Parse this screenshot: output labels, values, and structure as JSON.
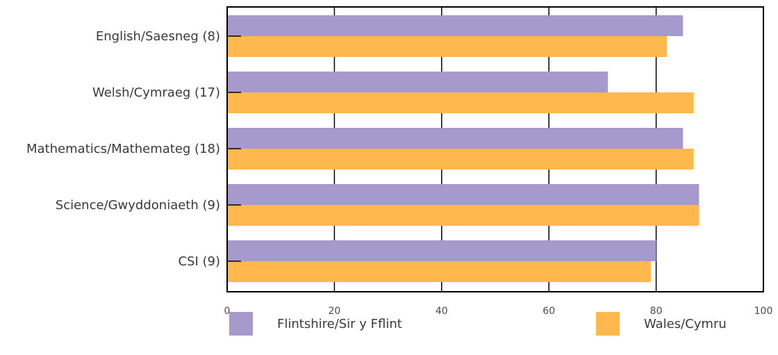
{
  "chart_data": {
    "type": "bar",
    "orientation": "horizontal",
    "categories": [
      "English/Saesneg (8)",
      "Welsh/Cymraeg (17)",
      "Mathematics/Mathemateg (18)",
      "Science/Gwyddoniaeth (9)",
      "CSI (9)"
    ],
    "series": [
      {
        "name": "Flintshire/Sir y Fflint",
        "color": "#a699cc",
        "values": [
          85,
          71,
          85,
          88,
          80
        ]
      },
      {
        "name": "Wales/Cymru",
        "color": "#ffb84d",
        "values": [
          82,
          87,
          87,
          88,
          79
        ]
      }
    ],
    "xlim": [
      0,
      100
    ],
    "xticks": [
      "0",
      "20",
      "40",
      "60",
      "80",
      "100"
    ],
    "grid": "vertical",
    "legend_position": "bottom"
  }
}
